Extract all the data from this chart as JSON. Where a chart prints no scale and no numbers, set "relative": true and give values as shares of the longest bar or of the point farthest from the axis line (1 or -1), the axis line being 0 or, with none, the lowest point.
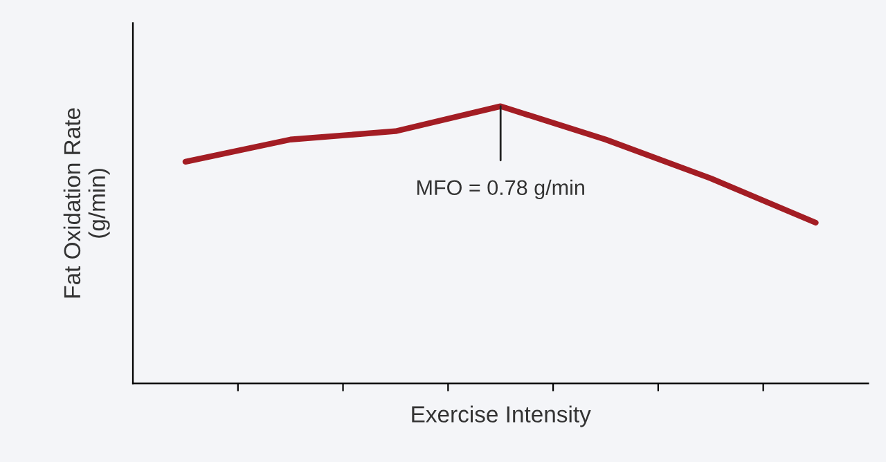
{
  "chart_data": {
    "type": "line",
    "relative": true,
    "xlabel": "Exercise Intensity",
    "ylabel": "Fat Oxidation Rate\n(g/min)",
    "categories": [
      null,
      null,
      null,
      null,
      null,
      null,
      null
    ],
    "series": [
      {
        "color": "#a31d24",
        "values": [
          0.8,
          0.88,
          0.91,
          1,
          0.88,
          0.74,
          0.58
        ]
      }
    ],
    "annotations": [
      "MFO = 0.78 g/min"
    ],
    "marker": "none",
    "line_style": "solid"
  }
}
